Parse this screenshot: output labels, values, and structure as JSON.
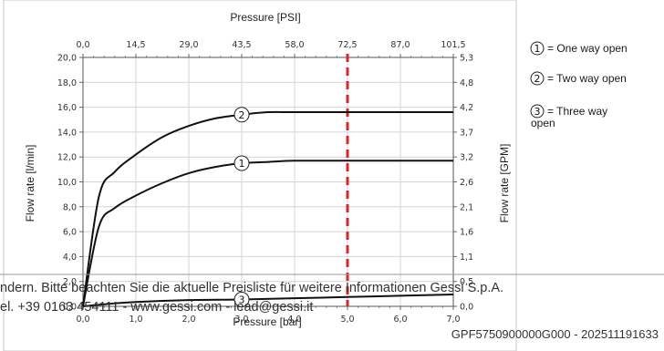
{
  "chart_data": {
    "type": "line",
    "top_axis": {
      "title": "Pressure [PSI]",
      "ticks": [
        "0,0",
        "14,5",
        "29,0",
        "43,5",
        "58,0",
        "72,5",
        "87,0",
        "101,5"
      ]
    },
    "bottom_axis": {
      "title": "Pressure [bar]",
      "ticks": [
        "0,0",
        "1,0",
        "2,0",
        "3,0",
        "4,0",
        "5,0",
        "6,0",
        "7,0"
      ],
      "range": [
        0,
        7
      ]
    },
    "left_axis": {
      "title": "Flow rate [l/min]",
      "ticks": [
        "0,0",
        "2,0",
        "4,0",
        "6,0",
        "8,0",
        "10,0",
        "12,0",
        "14,0",
        "16,0",
        "18,0",
        "20,0"
      ],
      "range": [
        0,
        20
      ]
    },
    "right_axis": {
      "title": "Flow rate [GPM]",
      "ticks": [
        "0,0",
        "0,5",
        "1,1",
        "1,6",
        "2,1",
        "2,6",
        "3,2",
        "3,7",
        "4,2",
        "4,8",
        "5,3"
      ]
    },
    "marker_line": {
      "x": 5.0,
      "color": "#d9262c"
    },
    "series": [
      {
        "marker": "1",
        "x": [
          0,
          0.3,
          0.6,
          1.0,
          1.5,
          2.0,
          2.5,
          3.0,
          3.5,
          4.0,
          5.0,
          6.0,
          7.0
        ],
        "y": [
          0,
          6.4,
          7.9,
          8.9,
          9.9,
          10.7,
          11.2,
          11.5,
          11.6,
          11.7,
          11.7,
          11.7,
          11.7
        ],
        "label_at": [
          3.0,
          11.5
        ]
      },
      {
        "marker": "2",
        "x": [
          0,
          0.3,
          0.6,
          1.0,
          1.5,
          2.0,
          2.5,
          3.0,
          3.5,
          4.0,
          5.0,
          6.0,
          7.0
        ],
        "y": [
          0,
          8.8,
          10.8,
          12.2,
          13.6,
          14.5,
          15.1,
          15.4,
          15.6,
          15.6,
          15.6,
          15.6,
          15.6
        ],
        "label_at": [
          3.0,
          15.4
        ]
      },
      {
        "marker": "3",
        "x": [
          0,
          0.5,
          1.0,
          2.0,
          3.0,
          4.0,
          5.0,
          6.0,
          7.0
        ],
        "y": [
          0,
          0.2,
          0.35,
          0.5,
          0.55,
          0.65,
          0.75,
          0.85,
          0.95
        ],
        "label_at": [
          3.0,
          0.55
        ]
      }
    ],
    "legend": [
      {
        "marker": "1",
        "text": "= One way open"
      },
      {
        "marker": "2",
        "text": "= Two way open"
      },
      {
        "marker": "3",
        "text": "= Three way",
        "text2": "open"
      }
    ],
    "grid": true,
    "legend_position": "right"
  },
  "watermark": {
    "line1": "ndern. Bitte beachten Sie die aktuelle Preisliste für weitere Informationen Gessi S.p.A.",
    "line2": "el. +39 0163 454111 - www.gessi.com - lead@gessi.it",
    "doc_id": "GPF5750900000G000 - 202511191633"
  }
}
